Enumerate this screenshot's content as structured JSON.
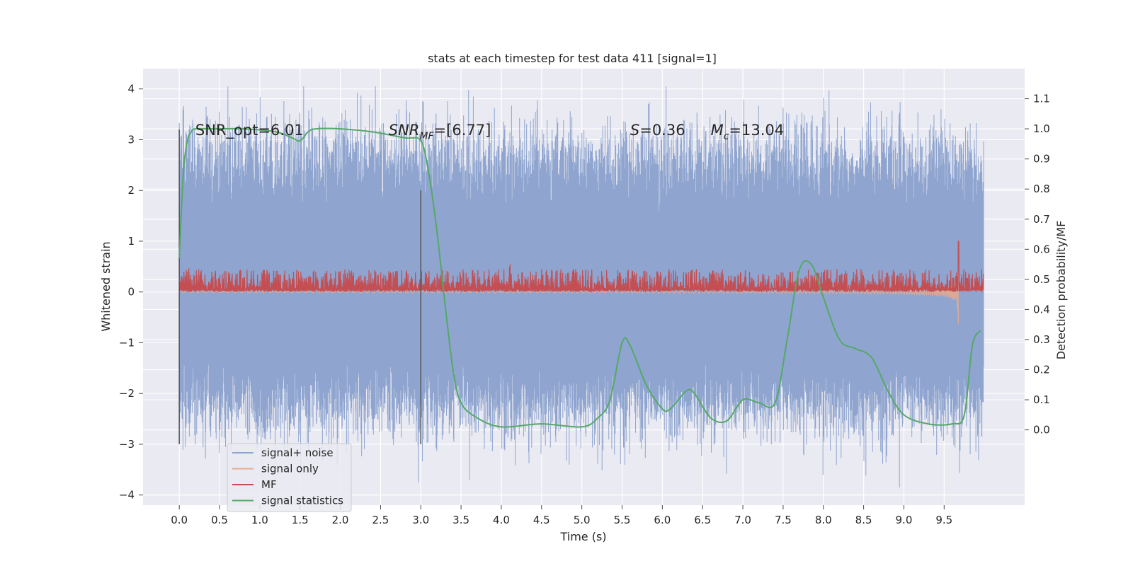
{
  "chart_data": {
    "type": "line",
    "title": "stats at each timestep for test data 411 [signal=1]",
    "xlabel": "Time (s)",
    "ylabel": "Whitened strain",
    "ylabel_right": "Detection probability/MF",
    "xlim": [
      -0.45,
      10.5
    ],
    "ylim": [
      -4.2,
      4.4
    ],
    "ylim_right": [
      -0.25,
      1.2
    ],
    "x_ticks": [
      "0.0",
      "0.5",
      "1.0",
      "1.5",
      "2.0",
      "2.5",
      "3.0",
      "3.5",
      "4.0",
      "4.5",
      "5.0",
      "5.5",
      "6.0",
      "6.5",
      "7.0",
      "7.5",
      "8.0",
      "8.5",
      "9.0",
      "9.5"
    ],
    "y_ticks": [
      "4",
      "3",
      "2",
      "1",
      "0",
      "−1",
      "−2",
      "−3",
      "−4"
    ],
    "y_ticks_right": [
      "1.1",
      "1.0",
      "0.9",
      "0.8",
      "0.7",
      "0.6",
      "0.5",
      "0.4",
      "0.3",
      "0.2",
      "0.1",
      "0.0"
    ],
    "grid": true,
    "legend_position": "lower-left",
    "colors": {
      "background": "#eaeaf2",
      "signal_noise": "#8fa5cf",
      "signal_only": "#e8a98d",
      "mf": "#c44e52",
      "signal_statistics": "#55a868",
      "window_marker": "#555555"
    },
    "annotations": [
      {
        "label": "SNR_opt=6.01",
        "x": 0.2
      },
      {
        "label": "SNR",
        "sub": "MF",
        "rest": "=[6.77]",
        "italic": true,
        "x": 2.6
      },
      {
        "label": "S",
        "rest": "=0.36",
        "italic": true,
        "x": 5.6
      },
      {
        "label": "M",
        "sub": "c",
        "rest": "=13.04",
        "italic": true,
        "x": 6.6
      }
    ],
    "annotation_y": 3.2,
    "window_markers": [
      {
        "x": 0.0,
        "y_range": [
          -3.0,
          3.2
        ]
      },
      {
        "x": 3.0,
        "y_range": [
          -3.0,
          2.0
        ]
      }
    ],
    "series": [
      {
        "name": "signal+ noise",
        "kind": "noise_band",
        "x_range": [
          0.0,
          9.99
        ],
        "typical_range": [
          -2.2,
          2.7
        ],
        "extreme_range": [
          -3.85,
          4.05
        ]
      },
      {
        "name": "signal only",
        "kind": "chirp",
        "x_range": [
          0.0,
          9.68
        ],
        "peak_amplitude": 1.35,
        "merger_time": 9.68
      },
      {
        "name": "MF",
        "kind": "matched_filter",
        "x_range": [
          0.0,
          9.99
        ],
        "baseline": 0.05,
        "typical_max": 0.45,
        "peak": {
          "x": 9.68,
          "y": 1.0
        }
      },
      {
        "name": "signal statistics",
        "axis": "right",
        "x": [
          0.0,
          0.05,
          0.1,
          0.15,
          0.2,
          0.4,
          0.8,
          1.2,
          1.4,
          1.5,
          1.6,
          1.7,
          2.0,
          2.4,
          2.8,
          3.0,
          3.1,
          3.2,
          3.3,
          3.4,
          3.5,
          3.7,
          4.0,
          4.5,
          5.0,
          5.2,
          5.35,
          5.5,
          5.6,
          5.8,
          6.0,
          6.1,
          6.3,
          6.4,
          6.6,
          6.8,
          7.0,
          7.2,
          7.4,
          7.55,
          7.7,
          7.85,
          8.0,
          8.2,
          8.4,
          8.6,
          8.8,
          9.0,
          9.3,
          9.6,
          9.75,
          9.85,
          9.95
        ],
        "y": [
          0.57,
          0.85,
          0.96,
          0.99,
          1.0,
          1.0,
          1.0,
          0.99,
          0.97,
          0.96,
          0.99,
          1.0,
          1.0,
          0.99,
          0.97,
          0.96,
          0.85,
          0.66,
          0.42,
          0.2,
          0.09,
          0.04,
          0.01,
          0.02,
          0.01,
          0.04,
          0.1,
          0.29,
          0.28,
          0.15,
          0.07,
          0.07,
          0.13,
          0.12,
          0.04,
          0.03,
          0.1,
          0.09,
          0.09,
          0.3,
          0.53,
          0.55,
          0.44,
          0.3,
          0.27,
          0.24,
          0.13,
          0.05,
          0.02,
          0.02,
          0.05,
          0.28,
          0.33
        ]
      }
    ]
  }
}
